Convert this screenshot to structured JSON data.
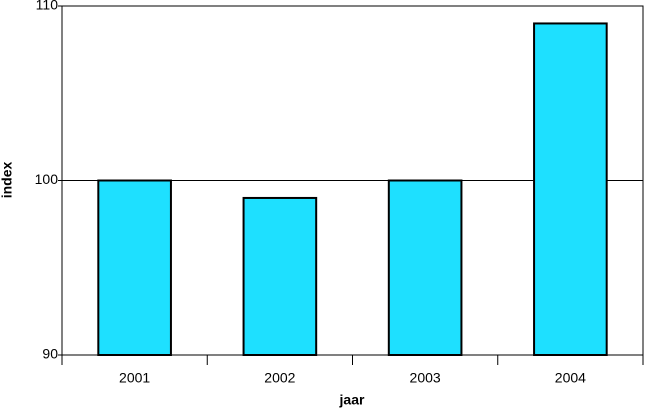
{
  "chart_data": {
    "type": "bar",
    "x_label": "jaar",
    "y_label": "index",
    "categories": [
      "2001",
      "2002",
      "2003",
      "2004"
    ],
    "values": [
      100,
      99,
      100,
      109
    ],
    "color": "#1ee0ff",
    "ylim": [
      90,
      110
    ],
    "yticks": [
      90,
      100,
      110
    ],
    "grid": true
  }
}
